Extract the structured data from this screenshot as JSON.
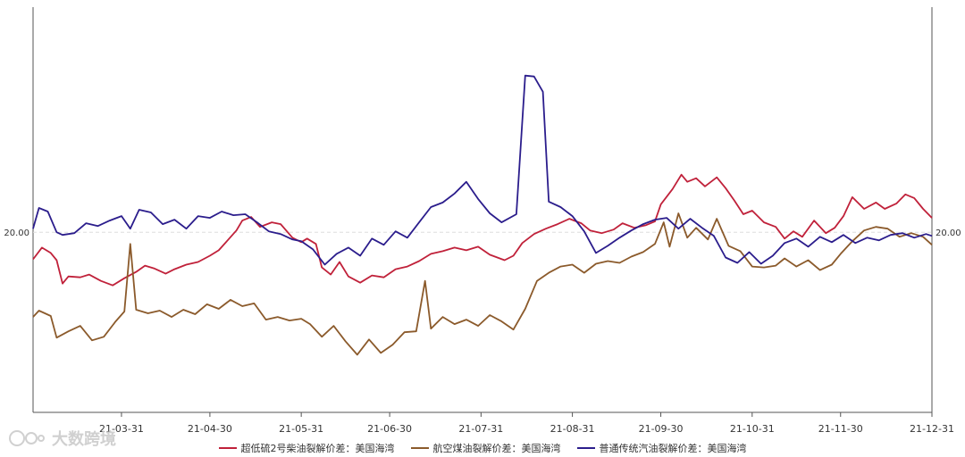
{
  "chart_data": {
    "type": "line",
    "title": "",
    "xlabel": "",
    "ylabel": "",
    "x_tick_labels": [
      "21-03-31",
      "21-04-30",
      "21-05-31",
      "21-06-30",
      "21-07-31",
      "21-08-31",
      "21-09-30",
      "21-10-31",
      "21-11-30",
      "21-12-31"
    ],
    "x_range": [
      "2021-03-01",
      "2021-12-31"
    ],
    "y_tick_labels": {
      "left": "20.00",
      "right": "20.00"
    },
    "y_range": [
      0,
      45
    ],
    "y_reference": 20,
    "grid": false,
    "legend_position": "bottom",
    "series": [
      {
        "name": "超低硫2号柴油裂解价差：美国海湾",
        "color": "#c0213a",
        "points": [
          [
            "2021-03-01",
            17.0
          ],
          [
            "2021-03-04",
            18.3
          ],
          [
            "2021-03-07",
            17.7
          ],
          [
            "2021-03-09",
            16.9
          ],
          [
            "2021-03-11",
            14.3
          ],
          [
            "2021-03-13",
            15.1
          ],
          [
            "2021-03-17",
            15.0
          ],
          [
            "2021-03-20",
            15.3
          ],
          [
            "2021-03-24",
            14.6
          ],
          [
            "2021-03-28",
            14.1
          ],
          [
            "2021-04-01",
            14.9
          ],
          [
            "2021-04-05",
            15.6
          ],
          [
            "2021-04-08",
            16.3
          ],
          [
            "2021-04-11",
            16.0
          ],
          [
            "2021-04-15",
            15.4
          ],
          [
            "2021-04-18",
            15.9
          ],
          [
            "2021-04-22",
            16.4
          ],
          [
            "2021-04-26",
            16.7
          ],
          [
            "2021-04-30",
            17.4
          ],
          [
            "2021-05-03",
            18.0
          ],
          [
            "2021-05-06",
            19.1
          ],
          [
            "2021-05-09",
            20.2
          ],
          [
            "2021-05-11",
            21.3
          ],
          [
            "2021-05-14",
            21.7
          ],
          [
            "2021-05-17",
            20.6
          ],
          [
            "2021-05-21",
            21.1
          ],
          [
            "2021-05-24",
            20.9
          ],
          [
            "2021-05-28",
            19.4
          ],
          [
            "2021-05-31",
            18.9
          ],
          [
            "2021-06-02",
            19.3
          ],
          [
            "2021-06-05",
            18.7
          ],
          [
            "2021-06-07",
            16.1
          ],
          [
            "2021-06-10",
            15.3
          ],
          [
            "2021-06-13",
            16.7
          ],
          [
            "2021-06-16",
            15.1
          ],
          [
            "2021-06-20",
            14.4
          ],
          [
            "2021-06-24",
            15.2
          ],
          [
            "2021-06-28",
            15.0
          ],
          [
            "2021-07-02",
            15.9
          ],
          [
            "2021-07-06",
            16.2
          ],
          [
            "2021-07-10",
            16.8
          ],
          [
            "2021-07-14",
            17.6
          ],
          [
            "2021-07-18",
            17.9
          ],
          [
            "2021-07-22",
            18.3
          ],
          [
            "2021-07-26",
            18.0
          ],
          [
            "2021-07-30",
            18.4
          ],
          [
            "2021-08-03",
            17.5
          ],
          [
            "2021-08-08",
            16.9
          ],
          [
            "2021-08-11",
            17.4
          ],
          [
            "2021-08-14",
            18.8
          ],
          [
            "2021-08-18",
            19.8
          ],
          [
            "2021-08-22",
            20.4
          ],
          [
            "2021-08-26",
            20.9
          ],
          [
            "2021-08-30",
            21.5
          ],
          [
            "2021-09-03",
            21.0
          ],
          [
            "2021-09-06",
            20.2
          ],
          [
            "2021-09-10",
            19.9
          ],
          [
            "2021-09-14",
            20.3
          ],
          [
            "2021-09-17",
            21.0
          ],
          [
            "2021-09-21",
            20.5
          ],
          [
            "2021-09-25",
            20.8
          ],
          [
            "2021-09-28",
            21.2
          ],
          [
            "2021-09-30",
            23.1
          ],
          [
            "2021-10-04",
            24.8
          ],
          [
            "2021-10-07",
            26.4
          ],
          [
            "2021-10-09",
            25.6
          ],
          [
            "2021-10-12",
            26.0
          ],
          [
            "2021-10-15",
            25.1
          ],
          [
            "2021-10-19",
            26.1
          ],
          [
            "2021-10-22",
            24.9
          ],
          [
            "2021-10-25",
            23.5
          ],
          [
            "2021-10-28",
            22.0
          ],
          [
            "2021-10-31",
            22.4
          ],
          [
            "2021-11-04",
            21.1
          ],
          [
            "2021-11-08",
            20.6
          ],
          [
            "2021-11-11",
            19.3
          ],
          [
            "2021-11-14",
            20.1
          ],
          [
            "2021-11-17",
            19.5
          ],
          [
            "2021-11-21",
            21.3
          ],
          [
            "2021-11-25",
            19.9
          ],
          [
            "2021-11-28",
            20.5
          ],
          [
            "2021-12-01",
            21.8
          ],
          [
            "2021-12-04",
            23.9
          ],
          [
            "2021-12-08",
            22.6
          ],
          [
            "2021-12-12",
            23.3
          ],
          [
            "2021-12-15",
            22.6
          ],
          [
            "2021-12-19",
            23.2
          ],
          [
            "2021-12-22",
            24.2
          ],
          [
            "2021-12-25",
            23.8
          ],
          [
            "2021-12-28",
            22.6
          ],
          [
            "2021-12-31",
            21.6
          ]
        ]
      },
      {
        "name": "航空煤油裂解价差：美国海湾",
        "color": "#8b5a2b",
        "points": [
          [
            "2021-03-01",
            10.6
          ],
          [
            "2021-03-03",
            11.3
          ],
          [
            "2021-03-07",
            10.7
          ],
          [
            "2021-03-09",
            8.3
          ],
          [
            "2021-03-13",
            9.0
          ],
          [
            "2021-03-17",
            9.6
          ],
          [
            "2021-03-21",
            8.0
          ],
          [
            "2021-03-25",
            8.4
          ],
          [
            "2021-03-29",
            10.1
          ],
          [
            "2021-04-01",
            11.2
          ],
          [
            "2021-04-03",
            18.7
          ],
          [
            "2021-04-05",
            11.4
          ],
          [
            "2021-04-09",
            11.0
          ],
          [
            "2021-04-13",
            11.3
          ],
          [
            "2021-04-17",
            10.6
          ],
          [
            "2021-04-21",
            11.4
          ],
          [
            "2021-04-25",
            10.9
          ],
          [
            "2021-04-29",
            12.0
          ],
          [
            "2021-05-03",
            11.5
          ],
          [
            "2021-05-07",
            12.5
          ],
          [
            "2021-05-11",
            11.8
          ],
          [
            "2021-05-15",
            12.1
          ],
          [
            "2021-05-19",
            10.3
          ],
          [
            "2021-05-23",
            10.6
          ],
          [
            "2021-05-27",
            10.2
          ],
          [
            "2021-05-31",
            10.4
          ],
          [
            "2021-06-03",
            9.8
          ],
          [
            "2021-06-07",
            8.4
          ],
          [
            "2021-06-11",
            9.6
          ],
          [
            "2021-06-15",
            7.9
          ],
          [
            "2021-06-19",
            6.4
          ],
          [
            "2021-06-23",
            8.1
          ],
          [
            "2021-06-27",
            6.6
          ],
          [
            "2021-07-01",
            7.5
          ],
          [
            "2021-07-05",
            8.9
          ],
          [
            "2021-07-09",
            9.0
          ],
          [
            "2021-07-12",
            14.6
          ],
          [
            "2021-07-14",
            9.3
          ],
          [
            "2021-07-18",
            10.6
          ],
          [
            "2021-07-22",
            9.8
          ],
          [
            "2021-07-26",
            10.3
          ],
          [
            "2021-07-30",
            9.6
          ],
          [
            "2021-08-03",
            10.8
          ],
          [
            "2021-08-07",
            10.1
          ],
          [
            "2021-08-11",
            9.2
          ],
          [
            "2021-08-15",
            11.5
          ],
          [
            "2021-08-19",
            14.6
          ],
          [
            "2021-08-23",
            15.5
          ],
          [
            "2021-08-27",
            16.2
          ],
          [
            "2021-08-31",
            16.4
          ],
          [
            "2021-09-04",
            15.5
          ],
          [
            "2021-09-08",
            16.5
          ],
          [
            "2021-09-12",
            16.8
          ],
          [
            "2021-09-16",
            16.6
          ],
          [
            "2021-09-20",
            17.3
          ],
          [
            "2021-09-24",
            17.8
          ],
          [
            "2021-09-28",
            18.7
          ],
          [
            "2021-10-01",
            21.1
          ],
          [
            "2021-10-03",
            18.4
          ],
          [
            "2021-10-06",
            22.1
          ],
          [
            "2021-10-09",
            19.4
          ],
          [
            "2021-10-12",
            20.5
          ],
          [
            "2021-10-16",
            19.2
          ],
          [
            "2021-10-19",
            21.5
          ],
          [
            "2021-10-23",
            18.5
          ],
          [
            "2021-10-27",
            17.9
          ],
          [
            "2021-10-31",
            16.2
          ],
          [
            "2021-11-04",
            16.1
          ],
          [
            "2021-11-08",
            16.3
          ],
          [
            "2021-11-11",
            17.1
          ],
          [
            "2021-11-15",
            16.2
          ],
          [
            "2021-11-19",
            16.9
          ],
          [
            "2021-11-23",
            15.8
          ],
          [
            "2021-11-27",
            16.4
          ],
          [
            "2021-11-30",
            17.6
          ],
          [
            "2021-12-04",
            19.0
          ],
          [
            "2021-12-08",
            20.2
          ],
          [
            "2021-12-12",
            20.6
          ],
          [
            "2021-12-16",
            20.4
          ],
          [
            "2021-12-20",
            19.5
          ],
          [
            "2021-12-24",
            19.9
          ],
          [
            "2021-12-28",
            19.5
          ],
          [
            "2021-12-31",
            18.6
          ]
        ]
      },
      {
        "name": "普通传统汽油裂解价差：美国海湾",
        "color": "#2b1d8c",
        "points": [
          [
            "2021-03-01",
            20.4
          ],
          [
            "2021-03-03",
            22.7
          ],
          [
            "2021-03-06",
            22.3
          ],
          [
            "2021-03-09",
            20.0
          ],
          [
            "2021-03-11",
            19.7
          ],
          [
            "2021-03-15",
            19.9
          ],
          [
            "2021-03-19",
            21.0
          ],
          [
            "2021-03-23",
            20.7
          ],
          [
            "2021-03-27",
            21.3
          ],
          [
            "2021-03-31",
            21.8
          ],
          [
            "2021-04-03",
            20.4
          ],
          [
            "2021-04-06",
            22.5
          ],
          [
            "2021-04-10",
            22.2
          ],
          [
            "2021-04-14",
            20.9
          ],
          [
            "2021-04-18",
            21.4
          ],
          [
            "2021-04-22",
            20.4
          ],
          [
            "2021-04-26",
            21.8
          ],
          [
            "2021-04-30",
            21.6
          ],
          [
            "2021-05-04",
            22.3
          ],
          [
            "2021-05-08",
            21.9
          ],
          [
            "2021-05-12",
            22.0
          ],
          [
            "2021-05-16",
            21.1
          ],
          [
            "2021-05-20",
            20.1
          ],
          [
            "2021-05-24",
            19.8
          ],
          [
            "2021-05-28",
            19.2
          ],
          [
            "2021-05-31",
            19.0
          ],
          [
            "2021-06-04",
            18.1
          ],
          [
            "2021-06-08",
            16.4
          ],
          [
            "2021-06-12",
            17.6
          ],
          [
            "2021-06-16",
            18.3
          ],
          [
            "2021-06-20",
            17.4
          ],
          [
            "2021-06-24",
            19.3
          ],
          [
            "2021-06-28",
            18.6
          ],
          [
            "2021-07-02",
            20.1
          ],
          [
            "2021-07-06",
            19.4
          ],
          [
            "2021-07-10",
            21.1
          ],
          [
            "2021-07-14",
            22.8
          ],
          [
            "2021-07-18",
            23.3
          ],
          [
            "2021-07-22",
            24.3
          ],
          [
            "2021-07-26",
            25.6
          ],
          [
            "2021-07-30",
            23.7
          ],
          [
            "2021-08-03",
            22.1
          ],
          [
            "2021-08-07",
            21.1
          ],
          [
            "2021-08-12",
            22.0
          ],
          [
            "2021-08-15",
            37.4
          ],
          [
            "2021-08-18",
            37.3
          ],
          [
            "2021-08-21",
            35.6
          ],
          [
            "2021-08-23",
            23.4
          ],
          [
            "2021-08-27",
            22.8
          ],
          [
            "2021-08-31",
            21.8
          ],
          [
            "2021-09-04",
            20.1
          ],
          [
            "2021-09-08",
            17.7
          ],
          [
            "2021-09-12",
            18.5
          ],
          [
            "2021-09-16",
            19.4
          ],
          [
            "2021-09-20",
            20.2
          ],
          [
            "2021-09-24",
            20.9
          ],
          [
            "2021-09-28",
            21.4
          ],
          [
            "2021-10-02",
            21.6
          ],
          [
            "2021-10-06",
            20.4
          ],
          [
            "2021-10-10",
            21.5
          ],
          [
            "2021-10-14",
            20.5
          ],
          [
            "2021-10-18",
            19.6
          ],
          [
            "2021-10-22",
            17.2
          ],
          [
            "2021-10-26",
            16.6
          ],
          [
            "2021-10-30",
            17.8
          ],
          [
            "2021-11-03",
            16.5
          ],
          [
            "2021-11-07",
            17.4
          ],
          [
            "2021-11-11",
            18.8
          ],
          [
            "2021-11-15",
            19.3
          ],
          [
            "2021-11-19",
            18.4
          ],
          [
            "2021-11-23",
            19.5
          ],
          [
            "2021-11-27",
            18.9
          ],
          [
            "2021-12-01",
            19.7
          ],
          [
            "2021-12-05",
            18.8
          ],
          [
            "2021-12-09",
            19.4
          ],
          [
            "2021-12-13",
            19.1
          ],
          [
            "2021-12-17",
            19.7
          ],
          [
            "2021-12-21",
            19.9
          ],
          [
            "2021-12-25",
            19.4
          ],
          [
            "2021-12-29",
            19.8
          ],
          [
            "2021-12-31",
            19.6
          ]
        ]
      }
    ]
  },
  "watermark": {
    "text": "大数跨境"
  }
}
